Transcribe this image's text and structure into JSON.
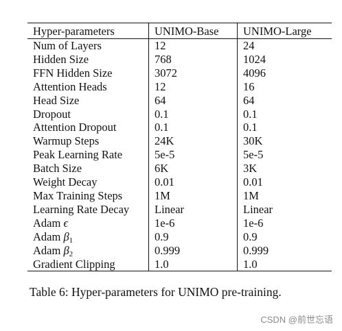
{
  "table": {
    "headers": [
      "Hyper-parameters",
      "UNIMO-Base",
      "UNIMO-Large"
    ],
    "rows": [
      [
        "Num of Layers",
        "12",
        "24"
      ],
      [
        "Hidden Size",
        "768",
        "1024"
      ],
      [
        "FFN Hidden Size",
        "3072",
        "4096"
      ],
      [
        "Attention Heads",
        "12",
        "16"
      ],
      [
        "Head Size",
        "64",
        "64"
      ],
      [
        "Dropout",
        "0.1",
        "0.1"
      ],
      [
        "Attention Dropout",
        "0.1",
        "0.1"
      ],
      [
        "Warmup Steps",
        "24K",
        "30K"
      ],
      [
        "Peak Learning Rate",
        "5e-5",
        "5e-5"
      ],
      [
        "Batch Size",
        "6K",
        "3K"
      ],
      [
        "Weight Decay",
        "0.01",
        "0.01"
      ],
      [
        "Max Training Steps",
        "1M",
        "1M"
      ],
      [
        "Learning Rate Decay",
        "Linear",
        "Linear"
      ],
      [
        "Adam ϵ",
        "1e-6",
        "1e-6"
      ],
      [
        "Adam β1",
        "0.9",
        "0.9"
      ],
      [
        "Adam β2",
        "0.999",
        "0.999"
      ],
      [
        "Gradient Clipping",
        "1.0",
        "1.0"
      ]
    ]
  },
  "caption": "Table 6:  Hyper-parameters for UNIMO pre-training.",
  "watermark": "CSDN @前世忘语"
}
